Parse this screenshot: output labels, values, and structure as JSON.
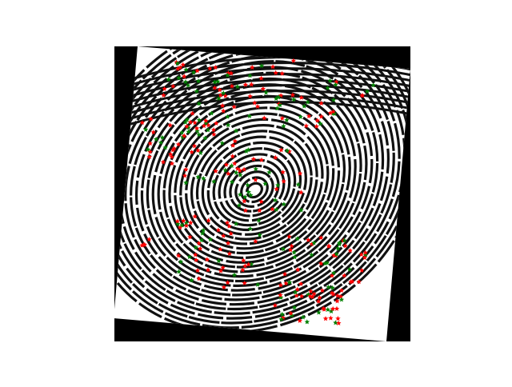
{
  "image": {
    "subject": "fingerprint",
    "background_color": "#ffffff",
    "frame_color": "#000000",
    "print_background": "#ffffff",
    "ridge_color": "#111111"
  },
  "markers": {
    "shape": "star",
    "colors": {
      "red": "#ff0000",
      "green": "#008000"
    }
  }
}
